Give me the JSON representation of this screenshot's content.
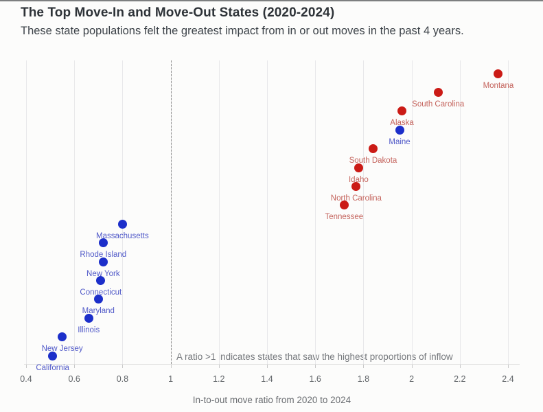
{
  "header": {
    "title": "The Top Move-In and Move-Out States (2020-2024)",
    "subtitle": "These state populations felt the greatest impact from in or out moves in the past 4 years."
  },
  "chart_data": {
    "type": "scatter",
    "title": "The Top Move-In and Move-Out States (2020-2024)",
    "subtitle": "These state populations felt the greatest impact from in or out moves in the past 4 years.",
    "xlabel": "In-to-out move ratio from 2020 to 2024",
    "ylabel": "",
    "y_encoding": "rank order, highest ratio at top to lowest at bottom",
    "xlim": [
      0.39,
      2.45
    ],
    "x_ticks": [
      0.4,
      0.6,
      0.8,
      1,
      1.2,
      1.4,
      1.6,
      1.8,
      2,
      2.2,
      2.4
    ],
    "x_tick_labels": [
      "0.4",
      "0.6",
      "0.8",
      "1",
      "1.2",
      "1.4",
      "1.6",
      "1.8",
      "2",
      "2.2",
      "2.4"
    ],
    "grid": "vertical gridlines at each tick",
    "reference_line_x": 1,
    "reference_line_style": "dashed",
    "annotation": "A ratio >1 indicates states that saw the highest proportions of inflow",
    "colors": {
      "red_dot": "#cb1b16",
      "red_label": "#c4635c",
      "blue_dot": "#1c2fca",
      "blue_label": "#5059c8",
      "gridline": "#e8e8ea",
      "reference_line": "#8f8f8f"
    },
    "points": [
      {
        "state": "Montana",
        "ratio": 2.36,
        "color_group": "red"
      },
      {
        "state": "South Carolina",
        "ratio": 2.11,
        "color_group": "red"
      },
      {
        "state": "Alaska",
        "ratio": 1.96,
        "color_group": "red"
      },
      {
        "state": "Maine",
        "ratio": 1.95,
        "color_group": "blue"
      },
      {
        "state": "South Dakota",
        "ratio": 1.84,
        "color_group": "red"
      },
      {
        "state": "Idaho",
        "ratio": 1.78,
        "color_group": "red"
      },
      {
        "state": "North Carolina",
        "ratio": 1.77,
        "color_group": "red"
      },
      {
        "state": "Tennessee",
        "ratio": 1.72,
        "color_group": "red"
      },
      {
        "state": "Massachusetts",
        "ratio": 0.8,
        "color_group": "blue"
      },
      {
        "state": "Rhode Island",
        "ratio": 0.72,
        "color_group": "blue"
      },
      {
        "state": "New York",
        "ratio": 0.72,
        "color_group": "blue"
      },
      {
        "state": "Connecticut",
        "ratio": 0.71,
        "color_group": "blue"
      },
      {
        "state": "Maryland",
        "ratio": 0.7,
        "color_group": "blue"
      },
      {
        "state": "Illinois",
        "ratio": 0.66,
        "color_group": "blue"
      },
      {
        "state": "New Jersey",
        "ratio": 0.55,
        "color_group": "blue"
      },
      {
        "state": "California",
        "ratio": 0.51,
        "color_group": "blue"
      }
    ]
  }
}
